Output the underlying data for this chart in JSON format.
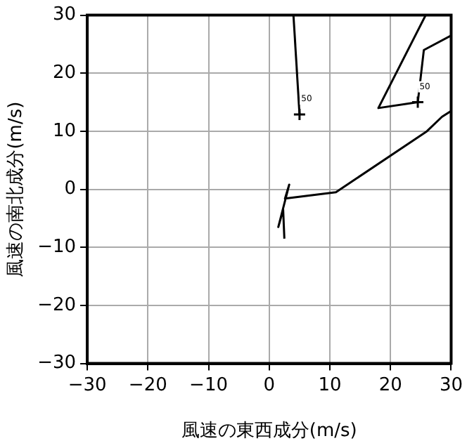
{
  "chart_data": {
    "type": "line",
    "xlabel": "風速の東西成分(m/s)",
    "ylabel": "風速の南北成分(m/s)",
    "xlim": [
      -30,
      30
    ],
    "ylim": [
      -30,
      30
    ],
    "xticks": [
      -30,
      -20,
      -10,
      0,
      10,
      20,
      30
    ],
    "yticks": [
      -30,
      -20,
      -10,
      0,
      10,
      20,
      30
    ],
    "grid": true,
    "marker": "none",
    "line_style": "solid",
    "series": [
      {
        "color": "#000000",
        "x": [
          2.5,
          2.3,
          1.5,
          3.3,
          2.6,
          11,
          26,
          28.5,
          30
        ],
        "values": [
          -8.5,
          -3.5,
          -6.5,
          0.8,
          -1.6,
          -0.5,
          10,
          12.5,
          13.5
        ]
      },
      {
        "color": "#000000",
        "x": [
          30,
          25.5,
          24.5,
          18,
          25.8
        ],
        "values": [
          26.5,
          24,
          15,
          14,
          30
        ]
      },
      {
        "color": "#000000",
        "x": [
          4,
          5
        ],
        "values": [
          30,
          12.9
        ]
      },
      {
        "type": "scatter",
        "marker": "cross",
        "color": "#000000",
        "x": [
          5,
          24.5
        ],
        "values": [
          12.9,
          15
        ]
      }
    ],
    "annotations": [
      {
        "text": "50",
        "x": 5,
        "y": 12.9
      },
      {
        "text": "50",
        "x": 24.5,
        "y": 15
      }
    ]
  }
}
